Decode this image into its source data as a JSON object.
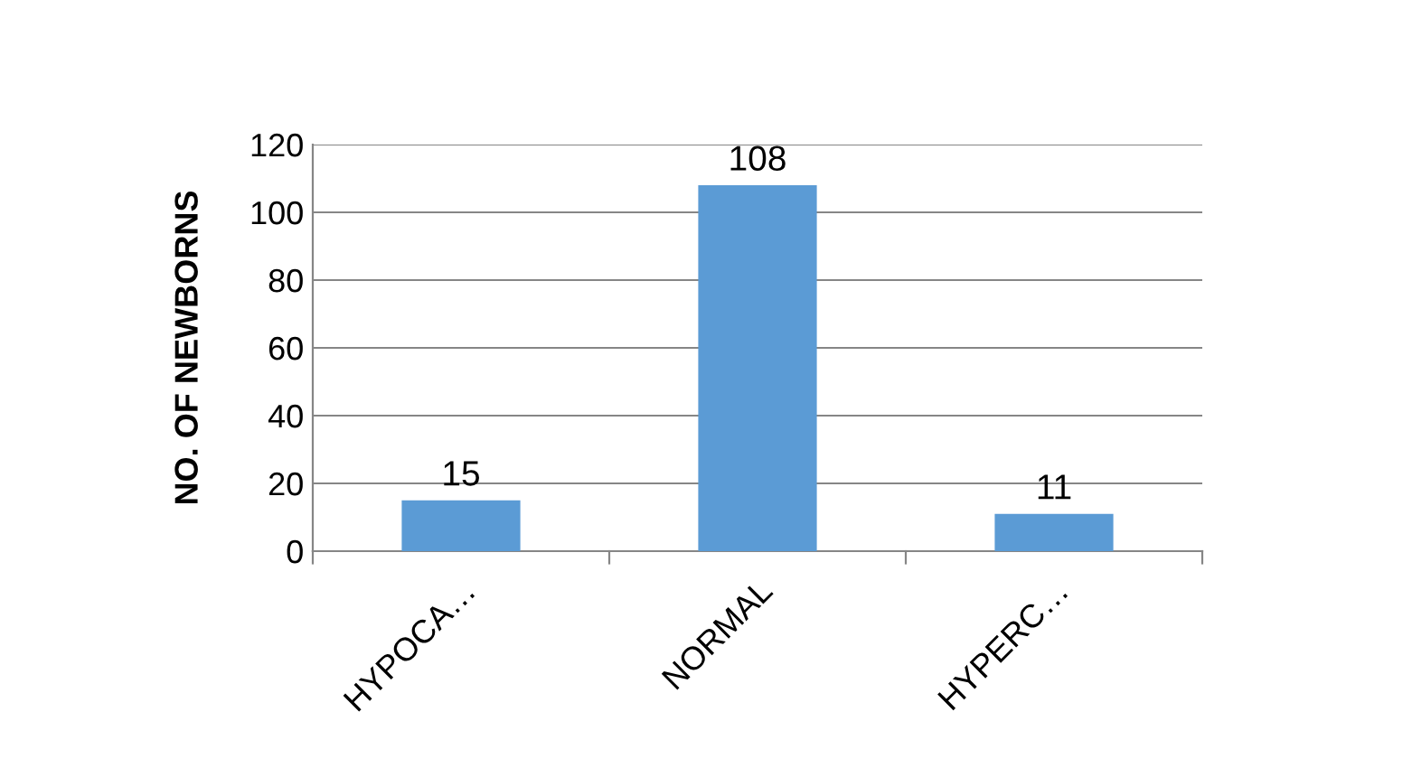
{
  "chart_data": {
    "type": "bar",
    "ylabel": "NO. OF NEWBORNS",
    "categories": [
      "HYPOCA…",
      "NORMAL",
      "HYPERC…"
    ],
    "values": [
      15,
      108,
      11
    ],
    "color": "#5b9bd5",
    "ylim": [
      0,
      120
    ],
    "yticks": [
      0,
      20,
      40,
      60,
      80,
      100,
      120
    ],
    "grid": "y",
    "data_labels": true
  }
}
